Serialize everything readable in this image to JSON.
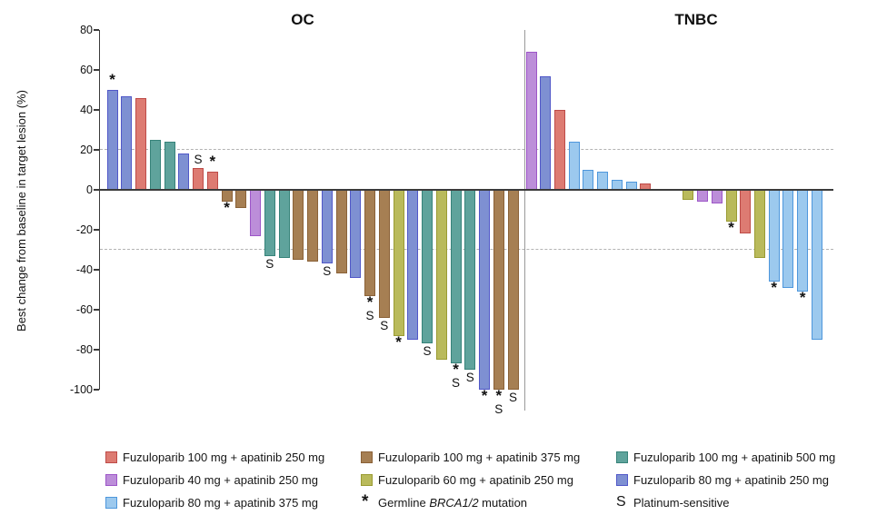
{
  "chart_data": {
    "type": "bar",
    "subtype": "waterfall",
    "title": "",
    "ylabel": "Best change from baseline in target lesion (%)",
    "ylim": [
      -100,
      80
    ],
    "yticks": [
      80,
      60,
      40,
      20,
      0,
      -20,
      -40,
      -60,
      -80,
      -100
    ],
    "reference_lines": [
      20,
      -30
    ],
    "grid": "dashed-thresholds-only",
    "legend_position": "bottom",
    "arms": {
      "fz100ap250": {
        "label": "Fuzuloparib 100 mg + apatinib 250 mg",
        "fill": "#DD7B72",
        "stroke": "#BE4B48"
      },
      "fz100ap375": {
        "label": "Fuzuloparib 100 mg + apatinib 375 mg",
        "fill": "#A67F53",
        "stroke": "#8A6137"
      },
      "fz100ap500": {
        "label": "Fuzuloparib 100 mg + apatinib 500 mg",
        "fill": "#5FA39C",
        "stroke": "#37837A"
      },
      "fz40ap250": {
        "label": "Fuzuloparib 40 mg + apatinib 250 mg",
        "fill": "#BC8ED9",
        "stroke": "#9D56C8"
      },
      "fz60ap250": {
        "label": "Fuzuloparib 60 mg + apatinib 250 mg",
        "fill": "#B9BA5B",
        "stroke": "#9A9B33"
      },
      "fz80ap250": {
        "label": "Fuzuloparib 80 mg + apatinib 250 mg",
        "fill": "#7E90D2",
        "stroke": "#5158C8"
      },
      "fz80ap375": {
        "label": "Fuzuloparib 80 mg + apatinib 375 mg",
        "fill": "#9CC9EE",
        "stroke": "#4E97DC"
      }
    },
    "groups": [
      {
        "title": "OC",
        "bars": [
          {
            "value": 50,
            "arm": "fz80ap250",
            "marks": [
              "*"
            ]
          },
          {
            "value": 47,
            "arm": "fz80ap250",
            "marks": []
          },
          {
            "value": 46,
            "arm": "fz100ap250",
            "marks": []
          },
          {
            "value": 25,
            "arm": "fz100ap500",
            "marks": []
          },
          {
            "value": 24,
            "arm": "fz100ap500",
            "marks": []
          },
          {
            "value": 18,
            "arm": "fz80ap250",
            "marks": []
          },
          {
            "value": 11,
            "arm": "fz100ap250",
            "marks": [
              "S"
            ]
          },
          {
            "value": 9,
            "arm": "fz100ap250",
            "marks": [
              "*"
            ]
          },
          {
            "value": -6,
            "arm": "fz100ap375",
            "marks": [
              "*"
            ]
          },
          {
            "value": -9,
            "arm": "fz100ap375",
            "marks": []
          },
          {
            "value": -23,
            "arm": "fz40ap250",
            "marks": []
          },
          {
            "value": -33,
            "arm": "fz100ap500",
            "marks": [
              "S"
            ]
          },
          {
            "value": -34,
            "arm": "fz100ap500",
            "marks": []
          },
          {
            "value": -35,
            "arm": "fz100ap375",
            "marks": []
          },
          {
            "value": -36,
            "arm": "fz100ap375",
            "marks": []
          },
          {
            "value": -37,
            "arm": "fz80ap250",
            "marks": [
              "S"
            ]
          },
          {
            "value": -42,
            "arm": "fz100ap375",
            "marks": []
          },
          {
            "value": -44,
            "arm": "fz80ap250",
            "marks": []
          },
          {
            "value": -53,
            "arm": "fz100ap375",
            "marks": [
              "*",
              "S"
            ]
          },
          {
            "value": -64,
            "arm": "fz100ap375",
            "marks": [
              "S"
            ]
          },
          {
            "value": -73,
            "arm": "fz60ap250",
            "marks": [
              "*"
            ]
          },
          {
            "value": -75,
            "arm": "fz80ap250",
            "marks": []
          },
          {
            "value": -77,
            "arm": "fz100ap500",
            "marks": [
              "S"
            ]
          },
          {
            "value": -85,
            "arm": "fz60ap250",
            "marks": []
          },
          {
            "value": -87,
            "arm": "fz100ap500",
            "marks": [
              "*",
              "S"
            ]
          },
          {
            "value": -90,
            "arm": "fz100ap500",
            "marks": [
              "S"
            ]
          },
          {
            "value": -100,
            "arm": "fz80ap250",
            "marks": [
              "*"
            ]
          },
          {
            "value": -100,
            "arm": "fz100ap375",
            "marks": [
              "*",
              "S"
            ]
          },
          {
            "value": -100,
            "arm": "fz100ap375",
            "marks": [
              "S"
            ]
          }
        ]
      },
      {
        "title": "TNBC",
        "bars": [
          {
            "value": 69,
            "arm": "fz40ap250",
            "marks": []
          },
          {
            "value": 57,
            "arm": "fz80ap250",
            "marks": []
          },
          {
            "value": 40,
            "arm": "fz100ap250",
            "marks": []
          },
          {
            "value": 24,
            "arm": "fz80ap375",
            "marks": []
          },
          {
            "value": 10,
            "arm": "fz80ap375",
            "marks": []
          },
          {
            "value": 9,
            "arm": "fz80ap375",
            "marks": []
          },
          {
            "value": 5,
            "arm": "fz80ap375",
            "marks": []
          },
          {
            "value": 4,
            "arm": "fz80ap375",
            "marks": []
          },
          {
            "value": 3,
            "arm": "fz100ap250",
            "marks": []
          },
          {
            "value": 0,
            "arm": null,
            "marks": []
          },
          {
            "value": 0,
            "arm": null,
            "marks": []
          },
          {
            "value": -5,
            "arm": "fz60ap250",
            "marks": []
          },
          {
            "value": -6,
            "arm": "fz40ap250",
            "marks": []
          },
          {
            "value": -7,
            "arm": "fz40ap250",
            "marks": []
          },
          {
            "value": -16,
            "arm": "fz60ap250",
            "marks": [
              "*"
            ]
          },
          {
            "value": -22,
            "arm": "fz100ap250",
            "marks": []
          },
          {
            "value": -34,
            "arm": "fz60ap250",
            "marks": []
          },
          {
            "value": -46,
            "arm": "fz80ap375",
            "marks": [
              "*"
            ]
          },
          {
            "value": -49,
            "arm": "fz80ap375",
            "marks": []
          },
          {
            "value": -51,
            "arm": "fz80ap375",
            "marks": [
              "*"
            ]
          },
          {
            "value": -75,
            "arm": "fz80ap375",
            "marks": []
          }
        ]
      }
    ]
  },
  "legend": {
    "columns": [
      [
        {
          "arm": "fz100ap250"
        },
        {
          "arm": "fz40ap250"
        },
        {
          "arm": "fz80ap375"
        }
      ],
      [
        {
          "arm": "fz100ap375"
        },
        {
          "arm": "fz60ap250"
        },
        {
          "symbol": "*",
          "prefix": "Germline ",
          "italic": "BRCA1/2",
          "suffix": " mutation"
        }
      ],
      [
        {
          "arm": "fz100ap500"
        },
        {
          "arm": "fz80ap250"
        },
        {
          "symbol": "S",
          "prefix": "Platinum-sensitive",
          "italic": "",
          "suffix": ""
        }
      ]
    ]
  }
}
